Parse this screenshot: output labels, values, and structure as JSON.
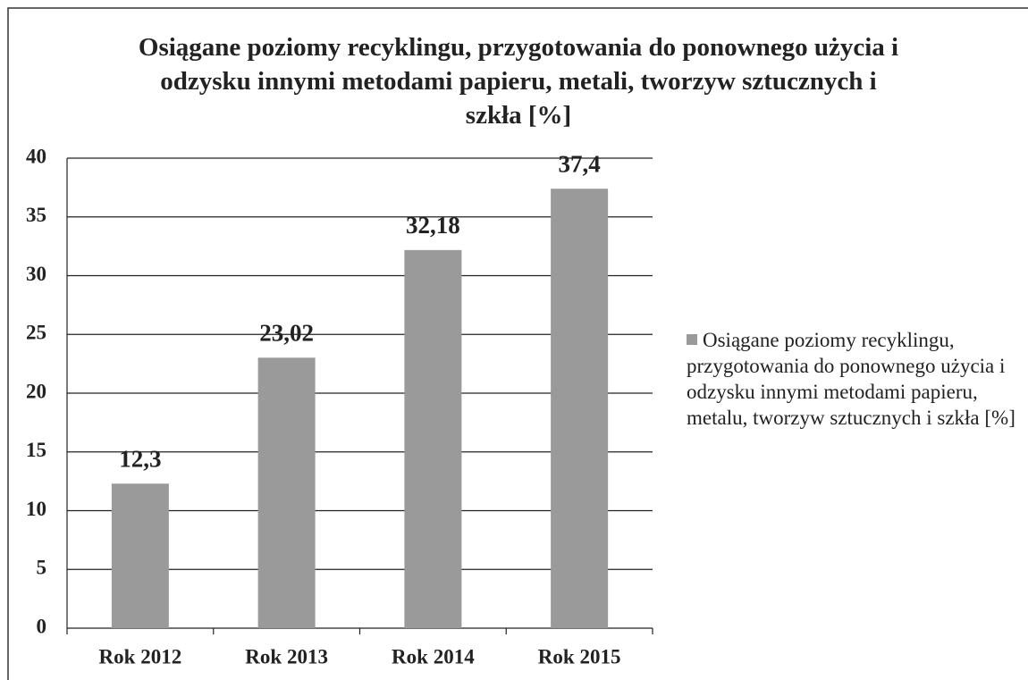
{
  "chart_data": {
    "type": "bar",
    "title": "Osiągane poziomy recyklingu, przygotowania do ponownego użycia i odzysku innymi  metodami papieru, metali, tworzyw sztucznych i szkła [%]",
    "categories": [
      "Rok 2012",
      "Rok 2013",
      "Rok 2014",
      "Rok 2015"
    ],
    "series": [
      {
        "name": "Osiągane poziomy recyklingu, przygotowania do ponownego użycia i odzysku innymi metodami papieru, metalu, tworzyw sztucznych i szkła [%]",
        "color": "#9a9a9a",
        "values": [
          12.3,
          23.02,
          32.18,
          37.4
        ],
        "value_labels": [
          "12,3",
          "23,02",
          "32,18",
          "37,4"
        ]
      }
    ],
    "ylim": [
      0,
      40
    ],
    "yticks": [
      0,
      5,
      10,
      15,
      20,
      25,
      30,
      35,
      40
    ],
    "grid": true,
    "legend": "right"
  }
}
